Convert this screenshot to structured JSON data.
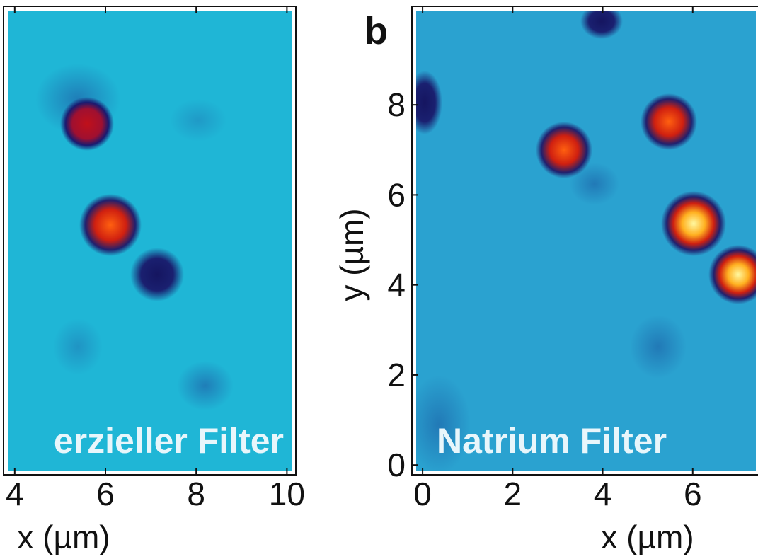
{
  "chart_data": [
    {
      "type": "heatmap",
      "xlabel": "x (µm)",
      "annotation": "erzieller Filter",
      "xlim": [
        3.8,
        10.15
      ],
      "xticks": [
        4,
        6,
        8,
        10
      ]
    },
    {
      "type": "heatmap",
      "panel_label": "b",
      "xlabel": "x (µm)",
      "ylabel": "y (µm)",
      "annotation": "Natrium Filter",
      "xlim": [
        -0.19,
        7.45
      ],
      "xticks": [
        0,
        2,
        4,
        6
      ],
      "ylim": [
        -0.17,
        10.14
      ],
      "yticks": [
        0,
        2,
        4,
        6,
        8
      ]
    }
  ]
}
